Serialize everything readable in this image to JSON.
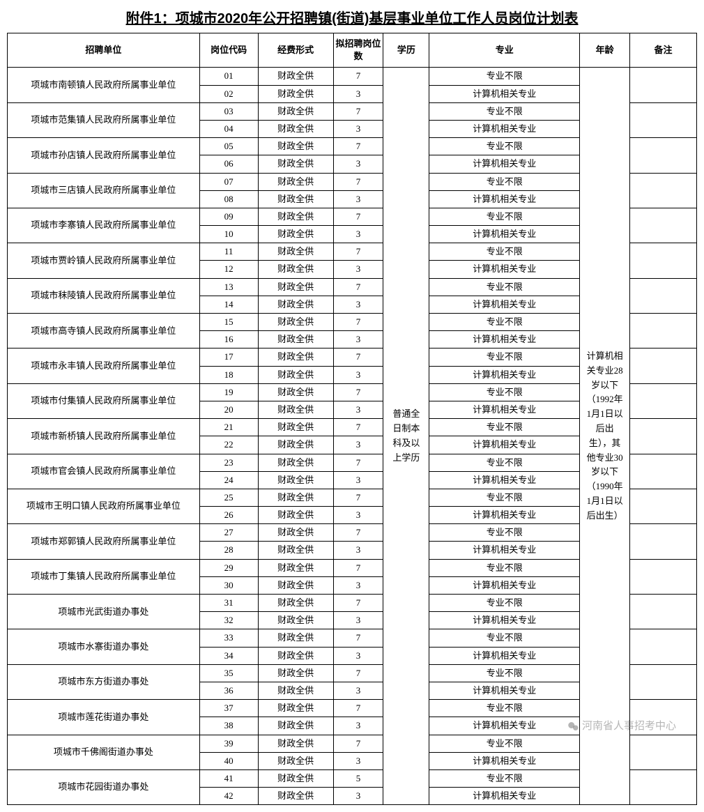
{
  "title": "附件1：项城市2020年公开招聘镇(街道)基层事业单位工作人员岗位计划表",
  "columns": {
    "unit": "招聘单位",
    "code": "岗位代码",
    "fund": "经费形式",
    "count": "拟招聘岗位数",
    "edu": "学历",
    "major": "专业",
    "age": "年龄",
    "note": "备注"
  },
  "shared": {
    "edu": "普通全日制本科及以上学历",
    "age": "计算机相关专业28岁以下（1992年1月1日以后出生），其他专业30岁以下（1990年1月1日以后出生）",
    "fund": "财政全供",
    "major_any": "专业不限",
    "major_cs": "计算机相关专业"
  },
  "units": [
    {
      "name": "项城市南顿镇人民政府所属事业单位",
      "codes": [
        "01",
        "02"
      ],
      "counts": [
        "7",
        "3"
      ]
    },
    {
      "name": "项城市范集镇人民政府所属事业单位",
      "codes": [
        "03",
        "04"
      ],
      "counts": [
        "7",
        "3"
      ]
    },
    {
      "name": "项城市孙店镇人民政府所属事业单位",
      "codes": [
        "05",
        "06"
      ],
      "counts": [
        "7",
        "3"
      ]
    },
    {
      "name": "项城市三店镇人民政府所属事业单位",
      "codes": [
        "07",
        "08"
      ],
      "counts": [
        "7",
        "3"
      ]
    },
    {
      "name": "项城市李寨镇人民政府所属事业单位",
      "codes": [
        "09",
        "10"
      ],
      "counts": [
        "7",
        "3"
      ]
    },
    {
      "name": "项城市贾岭镇人民政府所属事业单位",
      "codes": [
        "11",
        "12"
      ],
      "counts": [
        "7",
        "3"
      ]
    },
    {
      "name": "项城市秣陵镇人民政府所属事业单位",
      "codes": [
        "13",
        "14"
      ],
      "counts": [
        "7",
        "3"
      ]
    },
    {
      "name": "项城市高寺镇人民政府所属事业单位",
      "codes": [
        "15",
        "16"
      ],
      "counts": [
        "7",
        "3"
      ]
    },
    {
      "name": "项城市永丰镇人民政府所属事业单位",
      "codes": [
        "17",
        "18"
      ],
      "counts": [
        "7",
        "3"
      ]
    },
    {
      "name": "项城市付集镇人民政府所属事业单位",
      "codes": [
        "19",
        "20"
      ],
      "counts": [
        "7",
        "3"
      ]
    },
    {
      "name": "项城市新桥镇人民政府所属事业单位",
      "codes": [
        "21",
        "22"
      ],
      "counts": [
        "7",
        "3"
      ]
    },
    {
      "name": "项城市官会镇人民政府所属事业单位",
      "codes": [
        "23",
        "24"
      ],
      "counts": [
        "7",
        "3"
      ]
    },
    {
      "name": "项城市王明口镇人民政府所属事业单位",
      "codes": [
        "25",
        "26"
      ],
      "counts": [
        "7",
        "3"
      ]
    },
    {
      "name": "项城市郑郭镇人民政府所属事业单位",
      "codes": [
        "27",
        "28"
      ],
      "counts": [
        "7",
        "3"
      ]
    },
    {
      "name": "项城市丁集镇人民政府所属事业单位",
      "codes": [
        "29",
        "30"
      ],
      "counts": [
        "7",
        "3"
      ]
    },
    {
      "name": "项城市光武街道办事处",
      "codes": [
        "31",
        "32"
      ],
      "counts": [
        "7",
        "3"
      ]
    },
    {
      "name": "项城市水寨街道办事处",
      "codes": [
        "33",
        "34"
      ],
      "counts": [
        "7",
        "3"
      ]
    },
    {
      "name": "项城市东方街道办事处",
      "codes": [
        "35",
        "36"
      ],
      "counts": [
        "7",
        "3"
      ]
    },
    {
      "name": "项城市莲花街道办事处",
      "codes": [
        "37",
        "38"
      ],
      "counts": [
        "7",
        "3"
      ]
    },
    {
      "name": "项城市千佛阁街道办事处",
      "codes": [
        "39",
        "40"
      ],
      "counts": [
        "7",
        "3"
      ]
    },
    {
      "name": "项城市花园街道办事处",
      "codes": [
        "41",
        "42"
      ],
      "counts": [
        "5",
        "3"
      ]
    }
  ],
  "watermark": "河南省人事招考中心",
  "style": {
    "title_fontsize": 20,
    "cell_fontsize": 13,
    "border_color": "#000000",
    "background": "#ffffff",
    "text_color": "#000000"
  }
}
